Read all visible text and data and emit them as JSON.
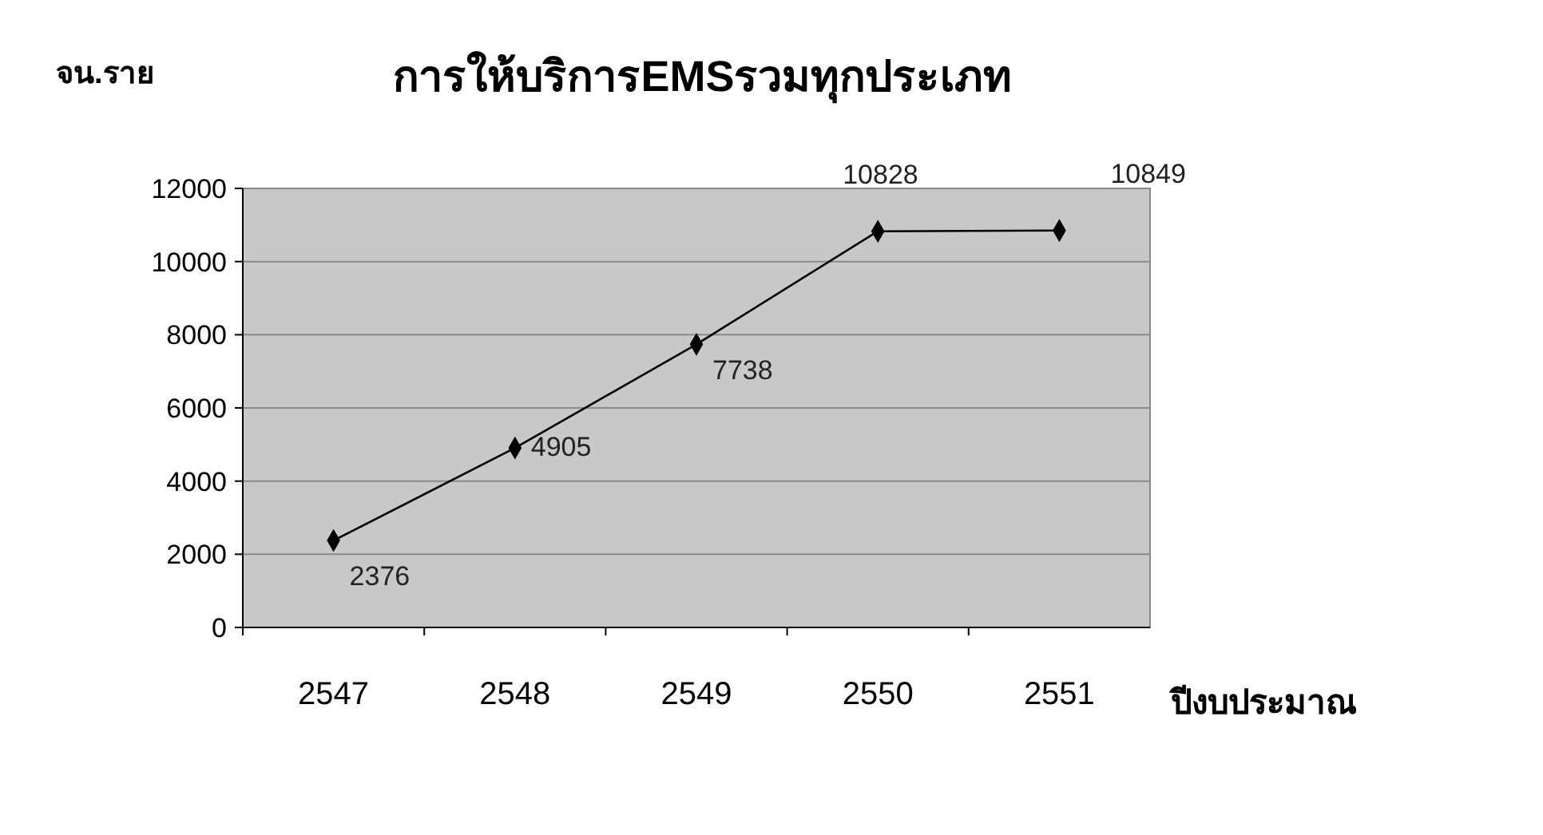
{
  "chart_data": {
    "type": "line",
    "title": "การให้บริการEMSรวมทุกประเภท",
    "ylabel": "จน.ราย",
    "xlabel": "ปีงบประมาณ",
    "categories": [
      "2547",
      "2548",
      "2549",
      "2550",
      "2551"
    ],
    "series": [
      {
        "color": "#000000",
        "values": [
          2376,
          4905,
          7738,
          10828,
          10849
        ]
      }
    ],
    "ylim": [
      0,
      12000
    ],
    "yticks": [
      0,
      2000,
      4000,
      6000,
      8000,
      10000,
      12000
    ],
    "grid": "y",
    "marker": "diamond",
    "line_style": "solid",
    "data_labels": true
  }
}
